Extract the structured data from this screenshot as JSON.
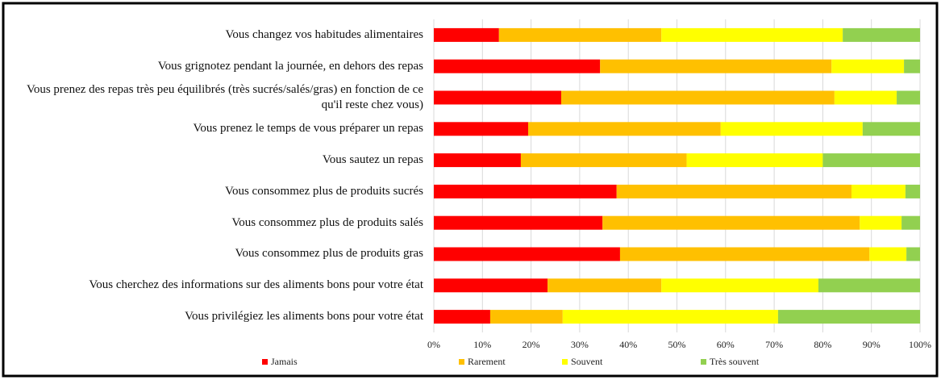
{
  "chart_data": {
    "type": "stacked_barh",
    "categories": [
      "Vous changez vos habitudes alimentaires",
      "Vous grignotez pendant la journée, en dehors des repas",
      "Vous prenez des repas très peu équilibrés (très sucrés/salés/gras) en fonction de ce qu'il reste chez vous)",
      "Vous prenez le temps de vous préparer un repas",
      "Vous sautez un repas",
      "Vous consommez plus de produits sucrés",
      "Vous consommez plus de produits salés",
      "Vous consommez plus de produits gras",
      "Vous cherchez des informations sur des aliments bons pour votre état",
      "Vous privilégiez les aliments bons  pour votre état"
    ],
    "series": [
      {
        "name": "Jamais",
        "color": "#ff0000",
        "values": [
          13.4,
          34.2,
          26.2,
          19.4,
          17.9,
          37.6,
          34.7,
          38.3,
          23.4,
          11.6
        ]
      },
      {
        "name": "Rarement",
        "color": "#ffc000",
        "values": [
          33.4,
          47.6,
          56.2,
          39.6,
          34.1,
          48.3,
          52.9,
          51.3,
          23.4,
          14.9
        ]
      },
      {
        "name": "Souvent",
        "color": "#ffff00",
        "values": [
          37.3,
          14.9,
          12.8,
          29.2,
          28.0,
          11.1,
          8.6,
          7.6,
          32.3,
          44.3
        ]
      },
      {
        "name": "Très souvent",
        "color": "#92d050",
        "values": [
          15.9,
          3.3,
          4.8,
          11.8,
          20.0,
          3.0,
          3.8,
          2.8,
          20.9,
          29.2
        ]
      }
    ],
    "xlim": [
      0,
      100
    ],
    "xticks": [
      {
        "value": 0,
        "label": "0%"
      },
      {
        "value": 10,
        "label": "10%"
      },
      {
        "value": 20,
        "label": "20%"
      },
      {
        "value": 30,
        "label": "30%"
      },
      {
        "value": 40,
        "label": "40%"
      },
      {
        "value": 50,
        "label": "50%"
      },
      {
        "value": 60,
        "label": "60%"
      },
      {
        "value": 70,
        "label": "70%"
      },
      {
        "value": 80,
        "label": "80%"
      },
      {
        "value": 90,
        "label": "90%"
      },
      {
        "value": 100,
        "label": "100%"
      }
    ],
    "grid": true,
    "legend": "bottom"
  }
}
